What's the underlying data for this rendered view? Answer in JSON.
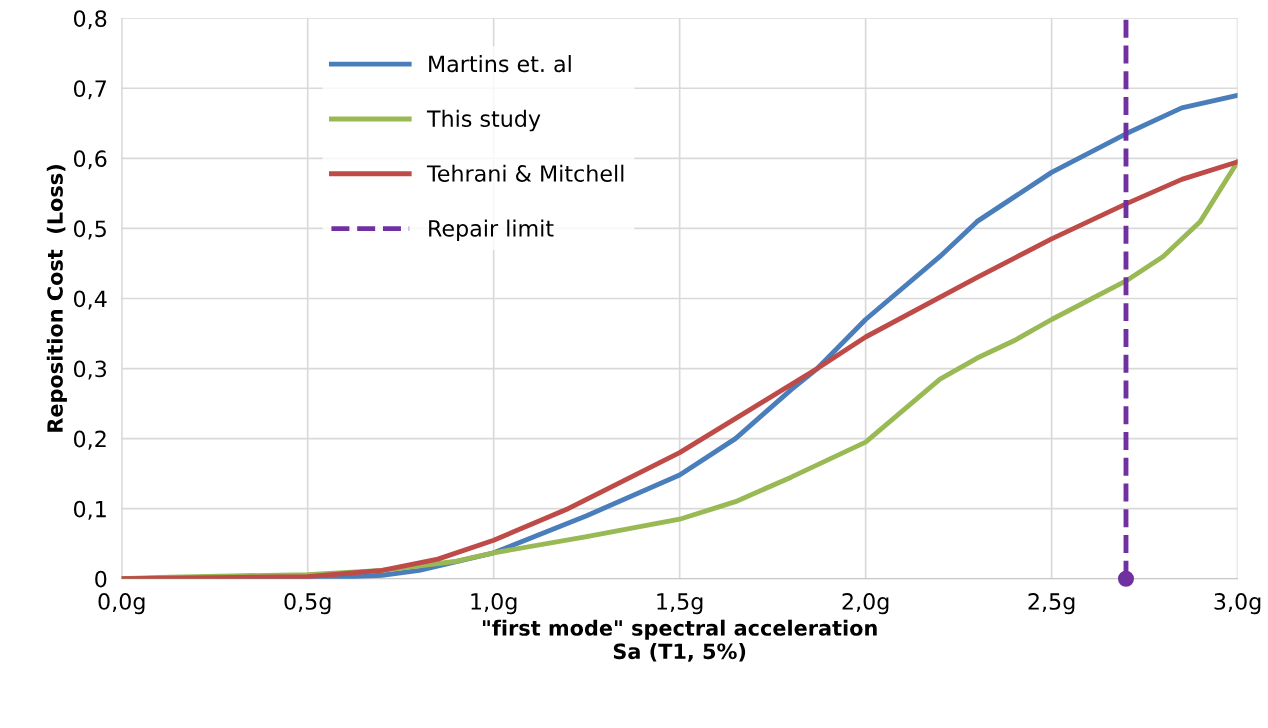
{
  "chart_data": {
    "type": "line",
    "xlabel": "\"first mode\" spectral acceleration\nSa (T1, 5%)",
    "ylabel": "Reposition Cost  (Loss)",
    "series": [
      {
        "name": "Martins et. al",
        "color": "#4a7ebb",
        "x": [
          0,
          0.5,
          0.7,
          0.8,
          1.0,
          1.25,
          1.5,
          1.65,
          1.8,
          1.87,
          2.0,
          2.2,
          2.3,
          2.5,
          2.7,
          2.85,
          3.0
        ],
        "values": [
          0,
          0,
          0.005,
          0.012,
          0.037,
          0.09,
          0.148,
          0.2,
          0.27,
          0.3,
          0.37,
          0.46,
          0.51,
          0.58,
          0.635,
          0.672,
          0.69
        ]
      },
      {
        "name": "This study",
        "color": "#98b954",
        "x": [
          0,
          0.1,
          0.5,
          0.7,
          0.9,
          1.0,
          1.25,
          1.5,
          1.65,
          1.8,
          2.0,
          2.1,
          2.2,
          2.3,
          2.4,
          2.5,
          2.7,
          2.8,
          2.9,
          3.0
        ],
        "values": [
          0,
          0.002,
          0.006,
          0.012,
          0.025,
          0.037,
          0.06,
          0.085,
          0.11,
          0.145,
          0.195,
          0.24,
          0.285,
          0.315,
          0.34,
          0.37,
          0.425,
          0.46,
          0.51,
          0.595
        ]
      },
      {
        "name": "Tehrani & Mitchell",
        "color": "#be4b48",
        "x": [
          0,
          0.5,
          0.7,
          0.85,
          1.0,
          1.2,
          1.5,
          1.87,
          2.0,
          2.3,
          2.5,
          2.7,
          2.85,
          3.0
        ],
        "values": [
          0,
          0.003,
          0.012,
          0.028,
          0.055,
          0.1,
          0.18,
          0.3,
          0.345,
          0.43,
          0.485,
          0.535,
          0.57,
          0.595
        ]
      },
      {
        "name": "Repair limit",
        "color": "#7030a0",
        "line_style": "dashed",
        "x": [
          2.7,
          2.7
        ],
        "values": [
          0,
          0.8
        ]
      },
      {
        "type": "scatter",
        "marker": "circle",
        "color": "#7030a0",
        "x": [
          2.7
        ],
        "values": [
          0
        ]
      }
    ],
    "xlim": [
      0,
      3
    ],
    "xticks": [
      {
        "value": 0,
        "label": "0,0g"
      },
      {
        "value": 0.5,
        "label": "0,5g"
      },
      {
        "value": 1,
        "label": "1,0g"
      },
      {
        "value": 1.5,
        "label": "1,5g"
      },
      {
        "value": 2,
        "label": "2,0g"
      },
      {
        "value": 2.5,
        "label": "2,5g"
      },
      {
        "value": 3,
        "label": "3,0g"
      }
    ],
    "ylim": [
      0,
      0.8
    ],
    "yticks": [
      0,
      {
        "value": 0.1,
        "label": "0,1"
      },
      {
        "value": 0.2,
        "label": "0,2"
      },
      {
        "value": 0.3,
        "label": "0,3"
      },
      {
        "value": 0.4,
        "label": "0,4"
      },
      {
        "value": 0.5,
        "label": "0,5"
      },
      {
        "value": 0.6,
        "label": "0,6"
      },
      {
        "value": 0.7,
        "label": "0,7"
      },
      {
        "value": 0.8,
        "label": "0,8"
      }
    ],
    "grid": true,
    "legend": "top left",
    "line_style": "solid",
    "marker": "none"
  }
}
